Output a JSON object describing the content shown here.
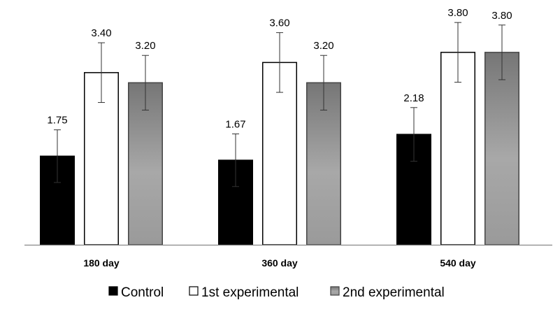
{
  "chart_data": {
    "type": "bar",
    "categories": [
      "180 day",
      "360 day",
      "540 day"
    ],
    "series": [
      {
        "name": "Control",
        "values": [
          1.75,
          1.67,
          2.18
        ],
        "error": [
          0.52,
          0.52,
          0.53
        ],
        "labels": [
          "1.75",
          "1.67",
          "2.18"
        ],
        "color": "#000000"
      },
      {
        "name": "1st experimental",
        "values": [
          3.4,
          3.6,
          3.8
        ],
        "error": [
          0.59,
          0.59,
          0.59
        ],
        "labels": [
          "3.40",
          "3.60",
          "3.80"
        ],
        "color": "#ffffff"
      },
      {
        "name": "2nd experimental",
        "values": [
          3.2,
          3.2,
          3.8
        ],
        "error": [
          0.54,
          0.54,
          0.54
        ],
        "labels": [
          "3.20",
          "3.20",
          "3.80"
        ],
        "color": "#8c8c8c"
      }
    ],
    "title": "",
    "xlabel": "",
    "ylabel": "",
    "ylim": [
      0,
      4.5
    ],
    "grid": false,
    "legend_position": "bottom"
  }
}
